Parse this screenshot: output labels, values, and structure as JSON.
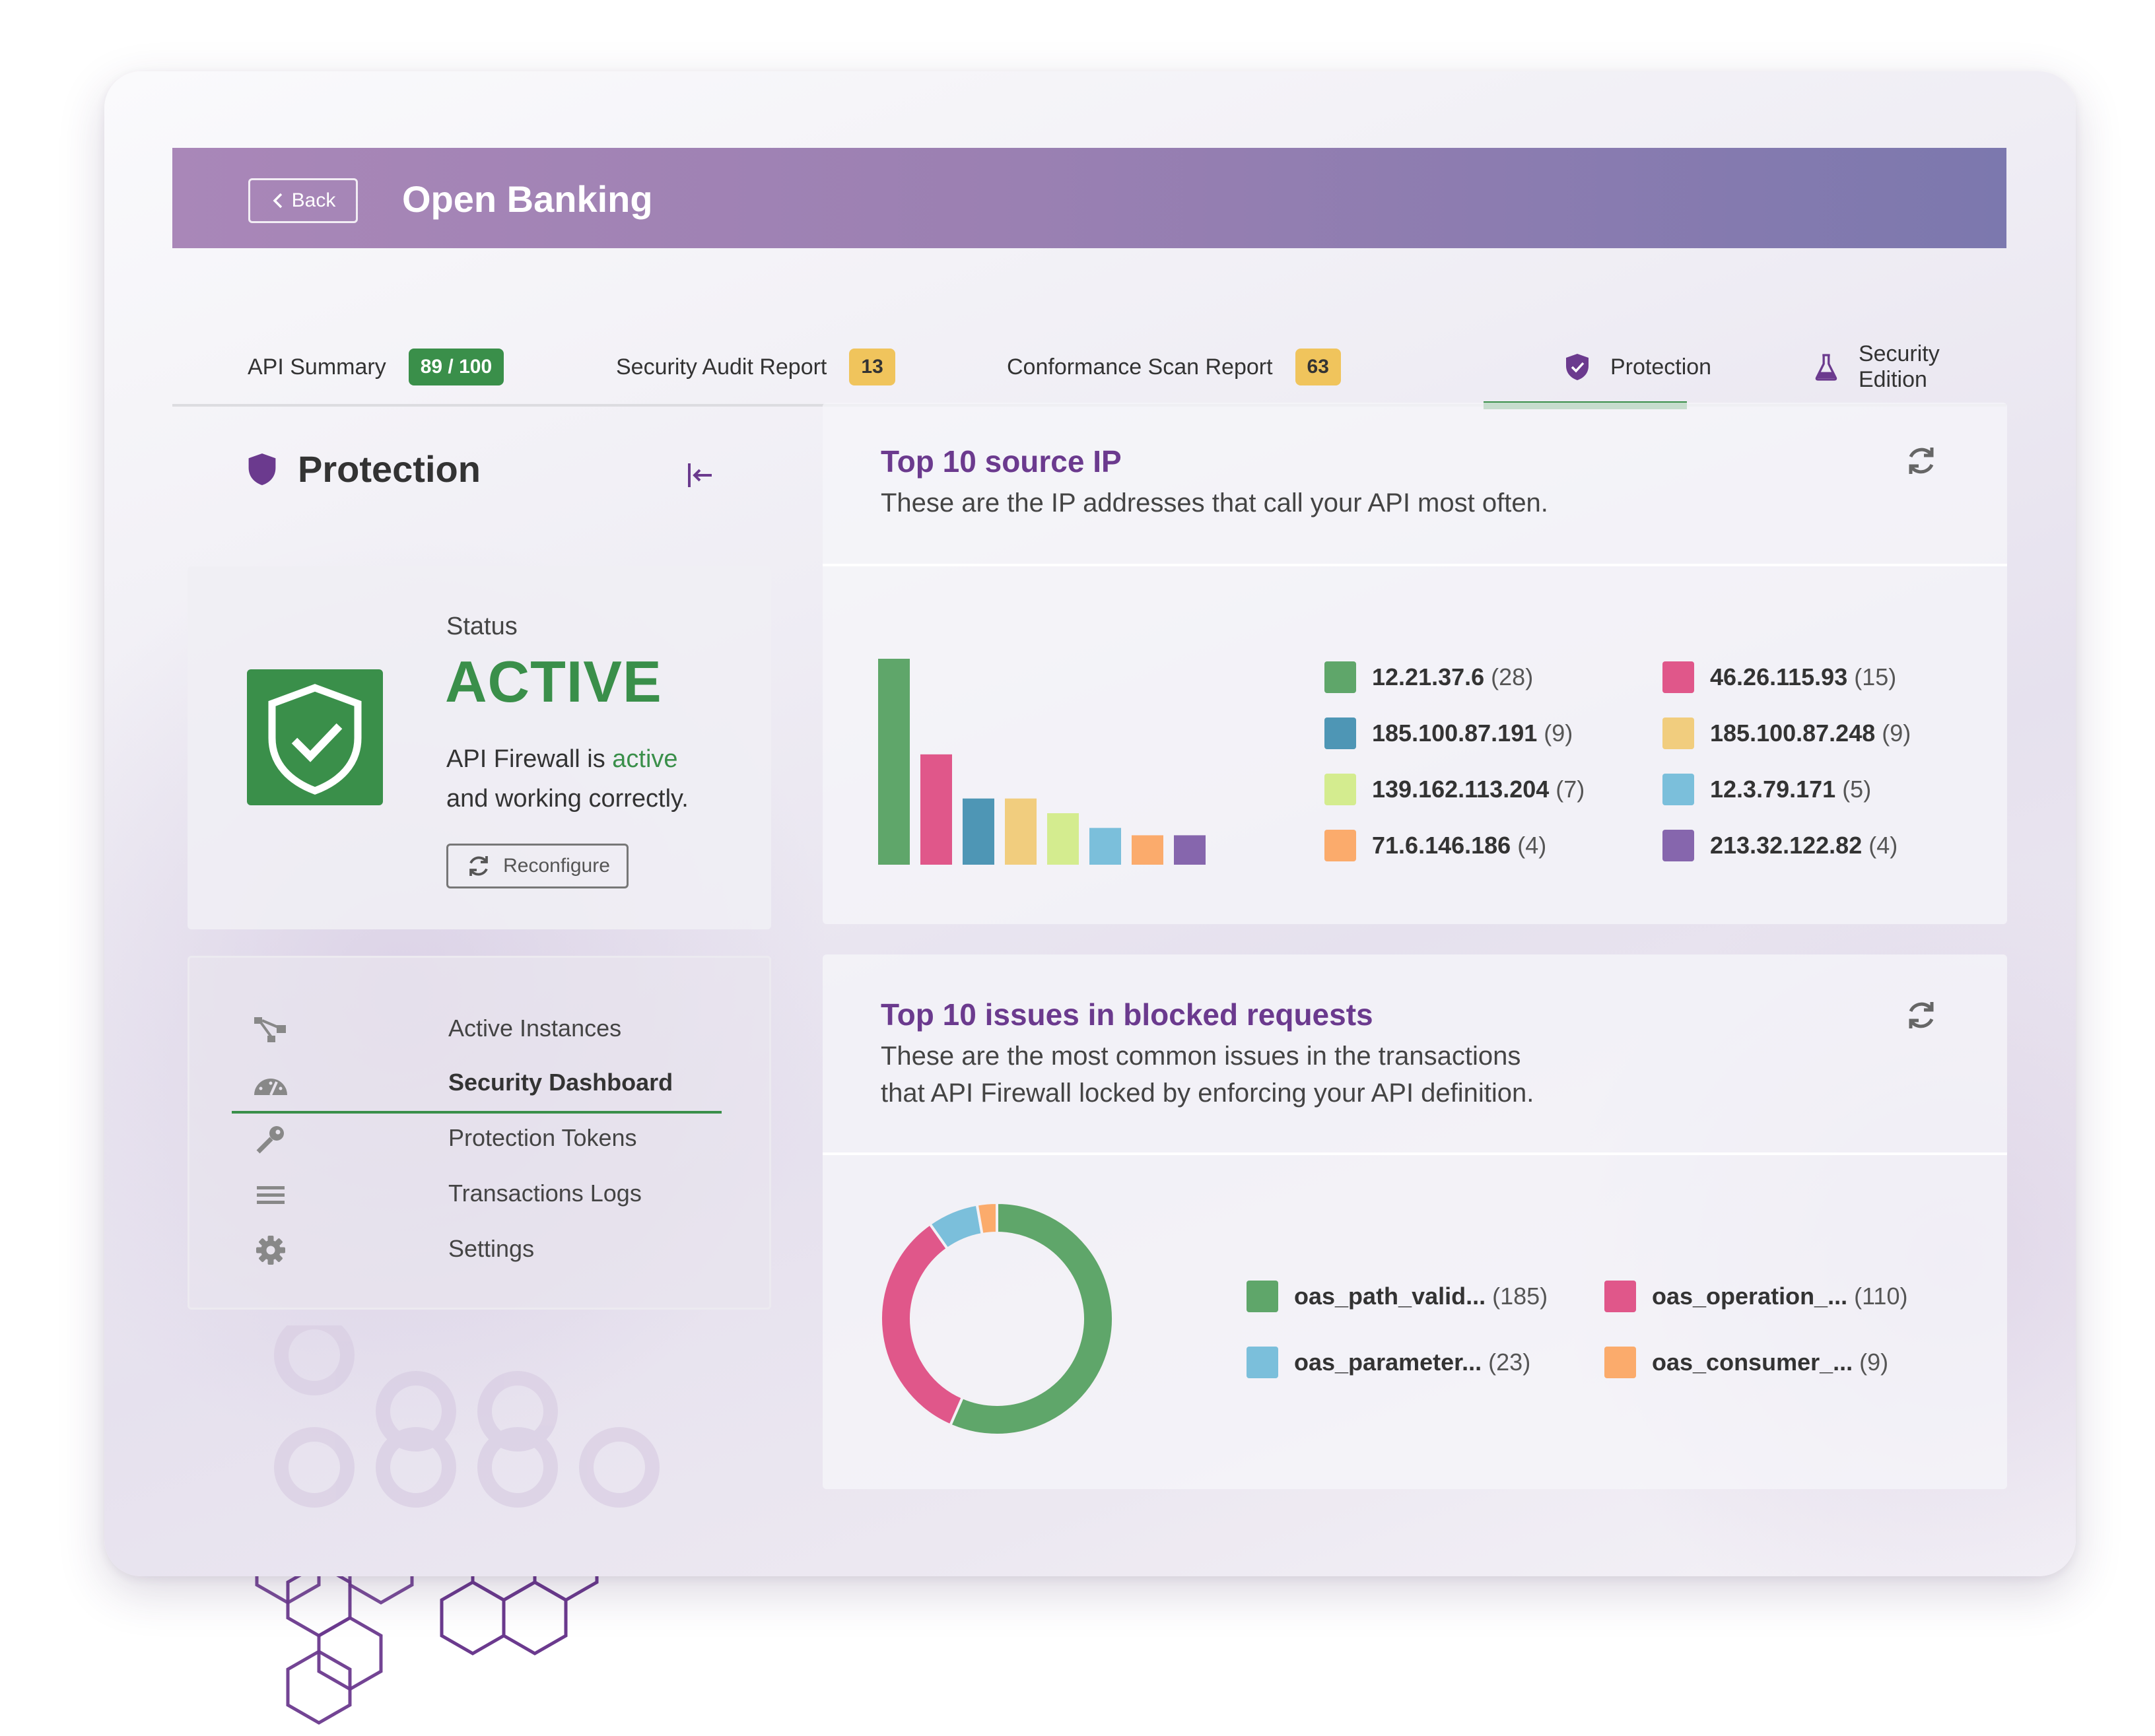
{
  "header": {
    "back_label": "Back",
    "title": "Open Banking"
  },
  "tabs": [
    {
      "label": "API Summary",
      "badge": "89 / 100",
      "badge_color": "#3a8f4a"
    },
    {
      "label": "Security Audit Report",
      "badge": "13",
      "badge_color": "#f0c45c"
    },
    {
      "label": "Conformance Scan Report",
      "badge": "63",
      "badge_color": "#f0c45c"
    },
    {
      "label": "Protection",
      "icon": "shield-icon",
      "active": true
    },
    {
      "label": "Security Edition",
      "icon": "flask-icon"
    }
  ],
  "sidebar": {
    "title": "Protection",
    "status": {
      "label": "Status",
      "value": "ACTIVE",
      "desc_prefix": "API Firewall is ",
      "desc_highlight": "active",
      "desc_suffix": "and working correctly.",
      "button": "Reconfigure"
    },
    "nav": [
      {
        "label": "Active Instances",
        "icon": "network-icon"
      },
      {
        "label": "Security Dashboard",
        "icon": "gauge-icon",
        "active": true
      },
      {
        "label": "Protection Tokens",
        "icon": "key-icon"
      },
      {
        "label": "Transactions Logs",
        "icon": "list-icon"
      },
      {
        "label": "Settings",
        "icon": "gear-icon"
      }
    ]
  },
  "panels": {
    "source_ip": {
      "title": "Top 10 source IP",
      "subtitle": "These are the IP addresses that call your API most often."
    },
    "issues": {
      "title": "Top 10 issues in blocked requests",
      "subtitle_line1": "These are the most common issues in the transactions",
      "subtitle_line2": "that API Firewall locked by enforcing your API definition."
    }
  },
  "chart_data": [
    {
      "type": "bar",
      "categories": [
        "12.21.37.6",
        "46.26.115.93",
        "185.100.87.191",
        "185.100.87.248",
        "139.162.113.204",
        "12.3.79.171",
        "71.6.146.186",
        "213.32.122.82"
      ],
      "values": [
        28,
        15,
        9,
        9,
        7,
        5,
        4,
        4
      ],
      "colors": [
        "#5fa66a",
        "#e0578a",
        "#4e96b5",
        "#f1cd7e",
        "#d4ec8f",
        "#7bbfdb",
        "#fbab6c",
        "#8666ad"
      ],
      "legend": [
        {
          "label": "12.21.37.6",
          "count": "(28)",
          "color": "#5fa66a"
        },
        {
          "label": "46.26.115.93",
          "count": "(15)",
          "color": "#e0578a"
        },
        {
          "label": "185.100.87.191",
          "count": "(9)",
          "color": "#4e96b5"
        },
        {
          "label": "185.100.87.248",
          "count": "(9)",
          "color": "#f1cd7e"
        },
        {
          "label": "139.162.113.204",
          "count": "(7)",
          "color": "#d4ec8f"
        },
        {
          "label": "12.3.79.171",
          "count": "(5)",
          "color": "#7bbfdb"
        },
        {
          "label": "71.6.146.186",
          "count": "(4)",
          "color": "#fbab6c"
        },
        {
          "label": "213.32.122.82",
          "count": "(4)",
          "color": "#8666ad"
        }
      ]
    },
    {
      "type": "pie",
      "categories": [
        "oas_path_valid...",
        "oas_operation_...",
        "oas_parameter...",
        "oas_consumer_..."
      ],
      "values": [
        185,
        110,
        23,
        9
      ],
      "colors": [
        "#5fa66a",
        "#e0578a",
        "#7bbfdb",
        "#fbab6c"
      ],
      "legend": [
        {
          "label": "oas_path_valid...",
          "count": "(185)",
          "color": "#5fa66a"
        },
        {
          "label": "oas_operation_...",
          "count": "(110)",
          "color": "#e0578a"
        },
        {
          "label": "oas_parameter...",
          "count": "(23)",
          "color": "#7bbfdb"
        },
        {
          "label": "oas_consumer_...",
          "count": "(9)",
          "color": "#fbab6c"
        }
      ]
    }
  ]
}
